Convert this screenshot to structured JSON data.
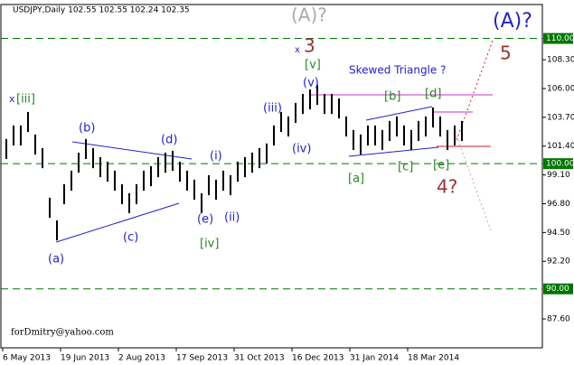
{
  "chart_data": {
    "type": "range-bar",
    "header": "USDJPY,Daily  102.55 102.55 102.24 102.35",
    "watermark": "forDmitry@yahoo.com",
    "bar_color": "#000000",
    "xlim": [
      0,
      74
    ],
    "xticks": [
      {
        "value": 0,
        "label": "6 May 2013"
      },
      {
        "value": 8,
        "label": "19 Jun 2013"
      },
      {
        "value": 16,
        "label": "2 Aug 2013"
      },
      {
        "value": 24,
        "label": "17 Sep 2013"
      },
      {
        "value": 32,
        "label": "31 Oct 2013"
      },
      {
        "value": 40,
        "label": "16 Dec 2013"
      },
      {
        "value": 48,
        "label": "31 Jan 2014"
      },
      {
        "value": 56,
        "label": "18 Mar 2014"
      }
    ],
    "ylim": [
      85.29,
      112.71
    ],
    "yticks": [
      {
        "value": 108.3,
        "label": "108.30"
      },
      {
        "value": 106,
        "label": "106.00"
      },
      {
        "value": 103.7,
        "label": "103.70"
      },
      {
        "value": 101.4,
        "label": "101.40"
      },
      {
        "value": 99.1,
        "label": "99.10"
      },
      {
        "value": 96.8,
        "label": "96.80"
      },
      {
        "value": 94.5,
        "label": "94.50"
      },
      {
        "value": 92.2,
        "label": "92.20"
      },
      {
        "value": 87.6,
        "label": "87.60"
      }
    ],
    "levels": [
      {
        "value": 110,
        "label": "110.00"
      },
      {
        "value": 100,
        "label": "100.00"
      },
      {
        "value": 90,
        "label": "90.00"
      }
    ],
    "level_color": "#007700",
    "series": [
      {
        "name": "high",
        "values": [
          101.97,
          103.05,
          103.05,
          104.13,
          102.33,
          101.24,
          97.28,
          95.47,
          98.36,
          99.44,
          100.88,
          101.97,
          101.24,
          100.52,
          100.16,
          99.44,
          98.36,
          97.64,
          98.36,
          99.44,
          99.8,
          100.52,
          100.88,
          101.03,
          100.16,
          99.44,
          98.72,
          97.64,
          99.08,
          98.72,
          99.44,
          99.08,
          100.16,
          100.52,
          100.88,
          101.24,
          101.61,
          103.05,
          104.13,
          103.77,
          104.85,
          105.57,
          105.93,
          106.3,
          105.57,
          105.57,
          105.21,
          103.77,
          102.69,
          102.33,
          103.05,
          103.05,
          102.69,
          103.41,
          103.77,
          103.05,
          102.69,
          103.41,
          103.77,
          104.49,
          103.77,
          102.69,
          103.05,
          103.41
        ]
      },
      {
        "name": "low",
        "values": [
          100.37,
          101.45,
          101.45,
          102.53,
          100.73,
          99.64,
          95.68,
          93.87,
          96.76,
          97.84,
          99.28,
          100.37,
          99.64,
          98.92,
          98.56,
          97.84,
          96.76,
          96.04,
          96.76,
          97.84,
          98.2,
          98.92,
          99.28,
          99.43,
          98.56,
          97.84,
          97.12,
          96.04,
          97.48,
          97.12,
          97.84,
          97.48,
          98.56,
          98.92,
          99.28,
          99.64,
          100.01,
          101.45,
          102.53,
          102.17,
          103.25,
          103.97,
          104.33,
          104.7,
          103.97,
          103.97,
          103.61,
          102.17,
          101.09,
          100.73,
          101.45,
          101.45,
          101.09,
          101.81,
          102.17,
          101.45,
          101.09,
          101.81,
          102.17,
          102.89,
          102.17,
          101.09,
          101.45,
          101.81
        ]
      }
    ],
    "annotations": [
      {
        "text": "(A)?",
        "color": "#aaaaaa"
      },
      {
        "text": "(A)?",
        "color": "#2222cc"
      },
      {
        "text": "x",
        "color": "#2222cc"
      },
      {
        "text": "3",
        "color": "#993333"
      },
      {
        "text": "[v]",
        "color": "#228822"
      },
      {
        "text": "(v)",
        "color": "#2222cc"
      },
      {
        "text": "5",
        "color": "#993333"
      },
      {
        "text": "Skewed Triangle ?",
        "color": "#2222cc"
      },
      {
        "text": "[b]",
        "color": "#228822"
      },
      {
        "text": "[d]",
        "color": "#228822"
      },
      {
        "text": "x",
        "color": "#2222cc"
      },
      {
        "text": "[iii]",
        "color": "#228822"
      },
      {
        "text": "(iii)",
        "color": "#2222cc"
      },
      {
        "text": "(b)",
        "color": "#2222cc"
      },
      {
        "text": "(d)",
        "color": "#2222cc"
      },
      {
        "text": "(i)",
        "color": "#2222cc"
      },
      {
        "text": "(iv)",
        "color": "#2222cc"
      },
      {
        "text": "[a]",
        "color": "#228822"
      },
      {
        "text": "[c]",
        "color": "#228822"
      },
      {
        "text": "[e]",
        "color": "#228822"
      },
      {
        "text": "4?",
        "color": "#993333"
      },
      {
        "text": "(c)",
        "color": "#2222cc"
      },
      {
        "text": "(e)",
        "color": "#2222cc"
      },
      {
        "text": "(ii)",
        "color": "#2222cc"
      },
      {
        "text": "[iv]",
        "color": "#228822"
      },
      {
        "text": "(a)",
        "color": "#2222cc"
      }
    ]
  }
}
